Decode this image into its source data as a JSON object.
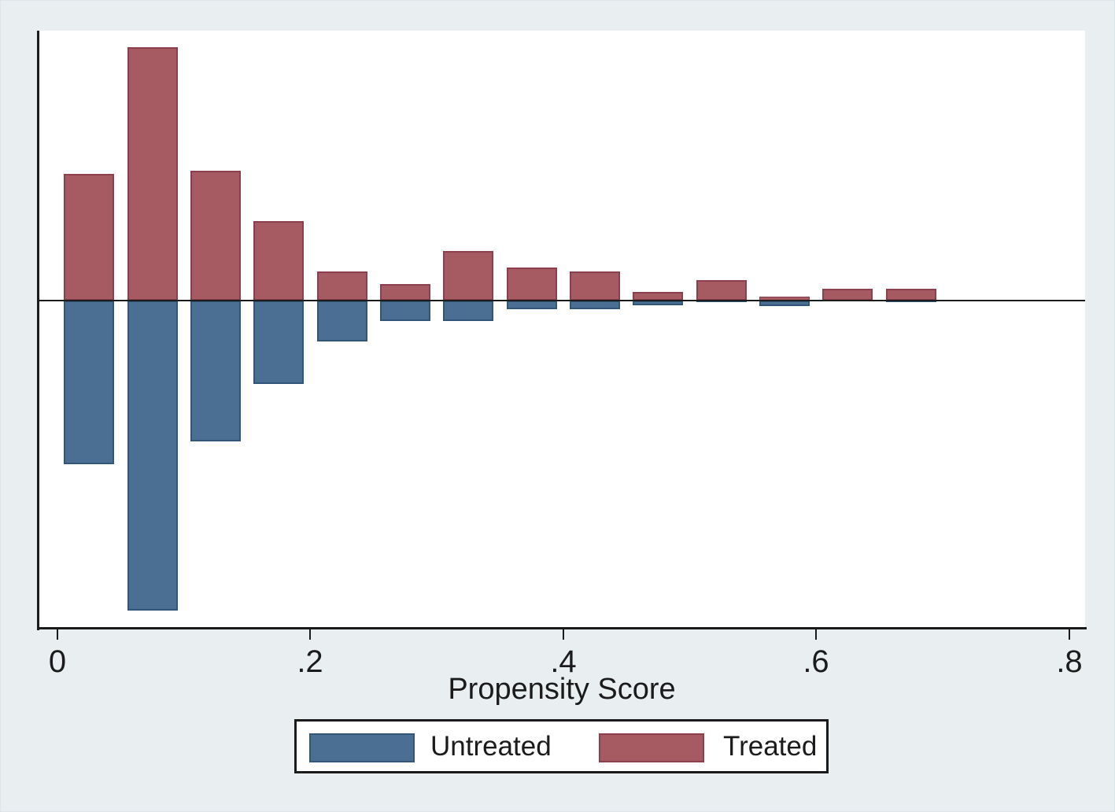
{
  "figure": {
    "background_color": "#e9eff1",
    "plot_background_color": "#ffffff",
    "axis_color": "#1b1b1b"
  },
  "chart_data": {
    "type": "bar",
    "variant": "diverging-propensity-histogram",
    "title": "",
    "xlabel": "Propensity Score",
    "ylabel": "",
    "y_axis_tick_labels_shown": false,
    "x_ticks": [
      "0",
      ".2",
      ".4",
      ".6",
      ".8"
    ],
    "x_tick_values": [
      0,
      0.2,
      0.4,
      0.6,
      0.8
    ],
    "xlim": [
      -0.015,
      0.813
    ],
    "bin_width": 0.05,
    "bin_centers": [
      0.025,
      0.075,
      0.125,
      0.175,
      0.225,
      0.275,
      0.325,
      0.375,
      0.425,
      0.475,
      0.525,
      0.575,
      0.625,
      0.675
    ],
    "series": [
      {
        "name": "Untreated",
        "direction": "down",
        "fill_color": "#4a6f92",
        "border_color": "#315677",
        "values": [
          0.204,
          0.386,
          0.175,
          0.104,
          0.051,
          0.025,
          0.025,
          0.011,
          0.011,
          0.006,
          0.002,
          0.007,
          0,
          0.002
        ]
      },
      {
        "name": "Treated",
        "direction": "up",
        "fill_color": "#a65b63",
        "border_color": "#8c3f4c",
        "values": [
          0.158,
          0.316,
          0.162,
          0.099,
          0.036,
          0.021,
          0.062,
          0.041,
          0.036,
          0.011,
          0.025,
          0.005,
          0.015,
          0.015
        ]
      }
    ],
    "values_note": "bar heights estimated from pixels; y axis is unlabeled in source, values expressed as fraction of group per bin",
    "legend": {
      "position": "bottom-center",
      "entries": [
        "Untreated",
        "Treated"
      ]
    }
  }
}
